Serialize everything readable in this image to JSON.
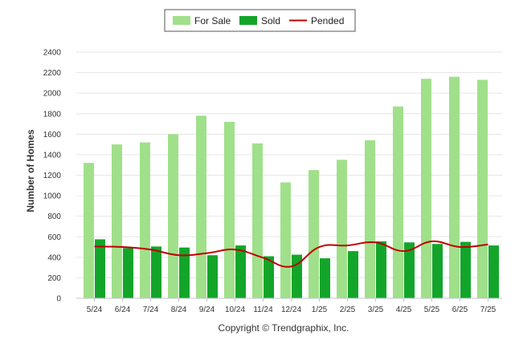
{
  "chart_data": {
    "type": "bar",
    "categories": [
      "5/24",
      "6/24",
      "7/24",
      "8/24",
      "9/24",
      "10/24",
      "11/24",
      "12/24",
      "1/25",
      "2/25",
      "3/25",
      "4/25",
      "5/25",
      "6/25",
      "7/25"
    ],
    "series": [
      {
        "name": "For Sale",
        "type": "bar",
        "color": "#a0e08a",
        "values": [
          1320,
          1500,
          1520,
          1600,
          1780,
          1720,
          1510,
          1130,
          1250,
          1350,
          1540,
          1870,
          2140,
          2160,
          2130
        ]
      },
      {
        "name": "Sold",
        "type": "bar",
        "color": "#13a52a",
        "values": [
          575,
          490,
          505,
          495,
          420,
          515,
          410,
          425,
          390,
          460,
          555,
          545,
          530,
          550,
          515
        ]
      },
      {
        "name": "Pended",
        "type": "line",
        "color": "#c00000",
        "values": [
          505,
          500,
          475,
          420,
          440,
          475,
          395,
          310,
          500,
          515,
          545,
          460,
          555,
          500,
          525
        ]
      }
    ],
    "ylabel": "Number of Homes",
    "xlabel": "",
    "ylim": [
      0,
      2400
    ],
    "yticks": [
      0,
      200,
      400,
      600,
      800,
      1000,
      1200,
      1400,
      1600,
      1800,
      2000,
      2200,
      2400
    ],
    "grid": true,
    "legend_position": "top-center"
  },
  "footer": "Copyright © Trendgraphix, Inc."
}
